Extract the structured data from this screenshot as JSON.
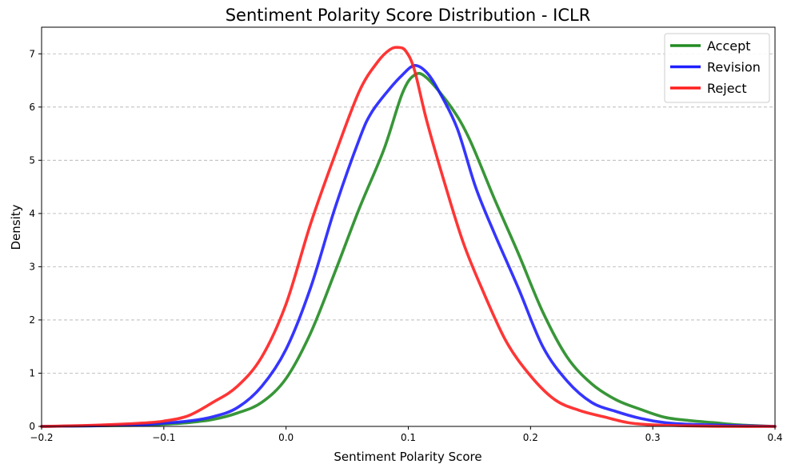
{
  "chart_data": {
    "type": "line",
    "title": "Sentiment Polarity Score Distribution - ICLR",
    "xlabel": "Sentiment Polarity Score",
    "ylabel": "Density",
    "xlim": [
      -0.2,
      0.4
    ],
    "ylim": [
      0,
      7.5
    ],
    "xticks": [
      -0.2,
      -0.1,
      0.0,
      0.1,
      0.2,
      0.3,
      0.4
    ],
    "xtick_labels": [
      "−0.2",
      "−0.1",
      "0.0",
      "0.1",
      "0.2",
      "0.3",
      "0.4"
    ],
    "yticks": [
      0,
      1,
      2,
      3,
      4,
      5,
      6,
      7
    ],
    "ytick_labels": [
      "0",
      "1",
      "2",
      "3",
      "4",
      "5",
      "6",
      "7"
    ],
    "grid": "y-dashed",
    "legend_position": "top-right",
    "series": [
      {
        "name": "Accept",
        "color": "#228B22",
        "x": [
          -0.2,
          -0.16,
          -0.12,
          -0.1,
          -0.08,
          -0.06,
          -0.04,
          -0.02,
          0.0,
          0.02,
          0.04,
          0.06,
          0.08,
          0.095,
          0.105,
          0.115,
          0.135,
          0.15,
          0.17,
          0.19,
          0.21,
          0.23,
          0.25,
          0.27,
          0.29,
          0.31,
          0.33,
          0.35,
          0.37,
          0.4
        ],
        "y": [
          0.0,
          0.01,
          0.02,
          0.04,
          0.07,
          0.13,
          0.25,
          0.45,
          0.9,
          1.75,
          2.9,
          4.1,
          5.2,
          6.25,
          6.6,
          6.55,
          6.0,
          5.4,
          4.3,
          3.25,
          2.15,
          1.3,
          0.8,
          0.5,
          0.32,
          0.17,
          0.11,
          0.07,
          0.03,
          0.0
        ]
      },
      {
        "name": "Revision",
        "color": "#1f1fff",
        "x": [
          -0.2,
          -0.16,
          -0.12,
          -0.1,
          -0.08,
          -0.06,
          -0.04,
          -0.02,
          0.0,
          0.02,
          0.04,
          0.06,
          0.07,
          0.085,
          0.095,
          0.105,
          0.115,
          0.125,
          0.14,
          0.155,
          0.17,
          0.19,
          0.21,
          0.23,
          0.25,
          0.27,
          0.29,
          0.31,
          0.33,
          0.36,
          0.4
        ],
        "y": [
          0.0,
          0.01,
          0.03,
          0.06,
          0.1,
          0.18,
          0.35,
          0.75,
          1.45,
          2.6,
          4.1,
          5.4,
          5.9,
          6.35,
          6.6,
          6.78,
          6.65,
          6.3,
          5.6,
          4.5,
          3.65,
          2.6,
          1.5,
          0.85,
          0.45,
          0.28,
          0.15,
          0.07,
          0.04,
          0.02,
          0.0
        ]
      },
      {
        "name": "Reject",
        "color": "#ff1f1f",
        "x": [
          -0.2,
          -0.16,
          -0.12,
          -0.1,
          -0.08,
          -0.06,
          -0.04,
          -0.02,
          0.0,
          0.02,
          0.04,
          0.06,
          0.075,
          0.085,
          0.092,
          0.098,
          0.105,
          0.115,
          0.13,
          0.145,
          0.16,
          0.18,
          0.2,
          0.22,
          0.24,
          0.26,
          0.28,
          0.3,
          0.33,
          0.36,
          0.4
        ],
        "y": [
          0.0,
          0.02,
          0.06,
          0.1,
          0.2,
          0.45,
          0.75,
          1.3,
          2.3,
          3.8,
          5.1,
          6.3,
          6.85,
          7.08,
          7.12,
          7.05,
          6.7,
          5.75,
          4.55,
          3.45,
          2.6,
          1.6,
          0.95,
          0.5,
          0.3,
          0.18,
          0.07,
          0.03,
          0.01,
          0.0,
          0.0
        ]
      }
    ]
  }
}
